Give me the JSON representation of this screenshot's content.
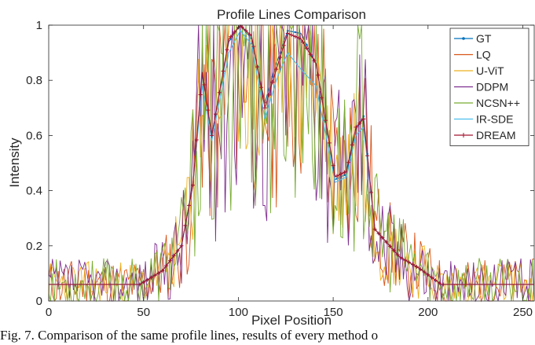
{
  "chart_data": {
    "type": "line",
    "title": "Profile Lines Comparison",
    "xlabel": "Pixel Position",
    "ylabel": "Intensity",
    "xlim": [
      0,
      256
    ],
    "ylim": [
      0,
      1
    ],
    "xticks": [
      "0",
      "50",
      "100",
      "150",
      "200",
      "250"
    ],
    "yticks": [
      "0",
      "0.2",
      "0.4",
      "0.6",
      "0.8",
      "1"
    ],
    "grid": false,
    "legend_position": "top-right",
    "series": [
      {
        "name": "GT",
        "color": "#0072BD",
        "marker": "dot",
        "style": "smooth",
        "values": [
          [
            0,
            0.06
          ],
          [
            48,
            0.06
          ],
          [
            60,
            0.11
          ],
          [
            70,
            0.2
          ],
          [
            76,
            0.42
          ],
          [
            81,
            0.82
          ],
          [
            86,
            0.6
          ],
          [
            95,
            0.94
          ],
          [
            101,
            1.0
          ],
          [
            107,
            0.95
          ],
          [
            114,
            0.72
          ],
          [
            120,
            0.86
          ],
          [
            126,
            0.98
          ],
          [
            133,
            0.97
          ],
          [
            141,
            0.86
          ],
          [
            151,
            0.44
          ],
          [
            157,
            0.46
          ],
          [
            162,
            0.62
          ],
          [
            166,
            0.67
          ],
          [
            172,
            0.26
          ],
          [
            185,
            0.16
          ],
          [
            195,
            0.12
          ],
          [
            207,
            0.06
          ],
          [
            256,
            0.06
          ]
        ]
      },
      {
        "name": "LQ",
        "color": "#D95319",
        "style": "noisy",
        "noise": 0.55,
        "seed": 11,
        "values": [
          [
            0,
            0.06
          ],
          [
            48,
            0.06
          ],
          [
            60,
            0.11
          ],
          [
            70,
            0.2
          ],
          [
            76,
            0.42
          ],
          [
            81,
            0.82
          ],
          [
            86,
            0.6
          ],
          [
            95,
            0.94
          ],
          [
            101,
            1.0
          ],
          [
            107,
            0.95
          ],
          [
            114,
            0.72
          ],
          [
            120,
            0.86
          ],
          [
            126,
            0.98
          ],
          [
            133,
            0.97
          ],
          [
            141,
            0.86
          ],
          [
            151,
            0.44
          ],
          [
            157,
            0.46
          ],
          [
            162,
            0.62
          ],
          [
            166,
            0.67
          ],
          [
            172,
            0.26
          ],
          [
            185,
            0.16
          ],
          [
            195,
            0.12
          ],
          [
            207,
            0.06
          ],
          [
            256,
            0.06
          ]
        ]
      },
      {
        "name": "U-ViT",
        "color": "#EDB120",
        "style": "noisy",
        "noise": 0.45,
        "seed": 23,
        "values": [
          [
            0,
            0.06
          ],
          [
            48,
            0.06
          ],
          [
            60,
            0.11
          ],
          [
            70,
            0.2
          ],
          [
            76,
            0.42
          ],
          [
            81,
            0.82
          ],
          [
            86,
            0.6
          ],
          [
            95,
            0.94
          ],
          [
            101,
            1.0
          ],
          [
            107,
            0.95
          ],
          [
            114,
            0.72
          ],
          [
            120,
            0.86
          ],
          [
            126,
            0.98
          ],
          [
            133,
            0.97
          ],
          [
            141,
            0.86
          ],
          [
            151,
            0.44
          ],
          [
            157,
            0.46
          ],
          [
            162,
            0.62
          ],
          [
            166,
            0.67
          ],
          [
            172,
            0.26
          ],
          [
            185,
            0.16
          ],
          [
            195,
            0.12
          ],
          [
            207,
            0.06
          ],
          [
            256,
            0.06
          ]
        ]
      },
      {
        "name": "DDPM",
        "color": "#7E2F8E",
        "style": "noisy",
        "noise": 0.6,
        "seed": 37,
        "values": [
          [
            0,
            0.06
          ],
          [
            48,
            0.06
          ],
          [
            60,
            0.11
          ],
          [
            70,
            0.2
          ],
          [
            76,
            0.42
          ],
          [
            81,
            0.82
          ],
          [
            86,
            0.6
          ],
          [
            95,
            0.94
          ],
          [
            101,
            1.0
          ],
          [
            107,
            0.95
          ],
          [
            114,
            0.72
          ],
          [
            120,
            0.86
          ],
          [
            126,
            0.98
          ],
          [
            133,
            0.97
          ],
          [
            141,
            0.86
          ],
          [
            151,
            0.44
          ],
          [
            157,
            0.46
          ],
          [
            162,
            0.62
          ],
          [
            166,
            0.67
          ],
          [
            172,
            0.26
          ],
          [
            185,
            0.16
          ],
          [
            195,
            0.12
          ],
          [
            207,
            0.06
          ],
          [
            256,
            0.06
          ]
        ]
      },
      {
        "name": "NCSN++",
        "color": "#77AC30",
        "style": "noisy",
        "noise": 0.6,
        "seed": 53,
        "values": [
          [
            0,
            0.06
          ],
          [
            48,
            0.06
          ],
          [
            60,
            0.11
          ],
          [
            70,
            0.2
          ],
          [
            76,
            0.42
          ],
          [
            81,
            0.82
          ],
          [
            86,
            0.6
          ],
          [
            95,
            0.94
          ],
          [
            101,
            1.0
          ],
          [
            107,
            0.95
          ],
          [
            114,
            0.72
          ],
          [
            120,
            0.86
          ],
          [
            126,
            0.98
          ],
          [
            133,
            0.97
          ],
          [
            141,
            0.86
          ],
          [
            151,
            0.44
          ],
          [
            157,
            0.46
          ],
          [
            162,
            0.62
          ],
          [
            166,
            0.67
          ],
          [
            172,
            0.26
          ],
          [
            185,
            0.16
          ],
          [
            195,
            0.12
          ],
          [
            207,
            0.06
          ],
          [
            256,
            0.06
          ]
        ]
      },
      {
        "name": "IR-SDE",
        "color": "#4DBEEE",
        "style": "smooth",
        "values": [
          [
            0,
            0.06
          ],
          [
            48,
            0.06
          ],
          [
            60,
            0.11
          ],
          [
            70,
            0.2
          ],
          [
            76,
            0.42
          ],
          [
            81,
            0.78
          ],
          [
            86,
            0.58
          ],
          [
            95,
            0.9
          ],
          [
            101,
            0.98
          ],
          [
            107,
            0.93
          ],
          [
            114,
            0.66
          ],
          [
            120,
            0.8
          ],
          [
            126,
            0.9
          ],
          [
            133,
            0.84
          ],
          [
            141,
            0.78
          ],
          [
            151,
            0.43
          ],
          [
            157,
            0.45
          ],
          [
            162,
            0.6
          ],
          [
            166,
            0.63
          ],
          [
            172,
            0.26
          ],
          [
            185,
            0.16
          ],
          [
            195,
            0.12
          ],
          [
            207,
            0.06
          ],
          [
            256,
            0.06
          ]
        ]
      },
      {
        "name": "DREAM",
        "color": "#A2142F",
        "marker": "plus",
        "style": "smooth",
        "values": [
          [
            0,
            0.06
          ],
          [
            48,
            0.06
          ],
          [
            60,
            0.11
          ],
          [
            70,
            0.2
          ],
          [
            76,
            0.42
          ],
          [
            81,
            0.83
          ],
          [
            86,
            0.6
          ],
          [
            95,
            0.95
          ],
          [
            101,
            1.0
          ],
          [
            107,
            0.96
          ],
          [
            114,
            0.7
          ],
          [
            120,
            0.84
          ],
          [
            126,
            0.97
          ],
          [
            133,
            0.95
          ],
          [
            141,
            0.86
          ],
          [
            151,
            0.45
          ],
          [
            157,
            0.47
          ],
          [
            162,
            0.63
          ],
          [
            166,
            0.66
          ],
          [
            172,
            0.26
          ],
          [
            185,
            0.16
          ],
          [
            195,
            0.12
          ],
          [
            207,
            0.06
          ],
          [
            256,
            0.06
          ]
        ]
      }
    ]
  },
  "caption": "Fig. 7. Comparison of the same profile lines, results of every method o"
}
